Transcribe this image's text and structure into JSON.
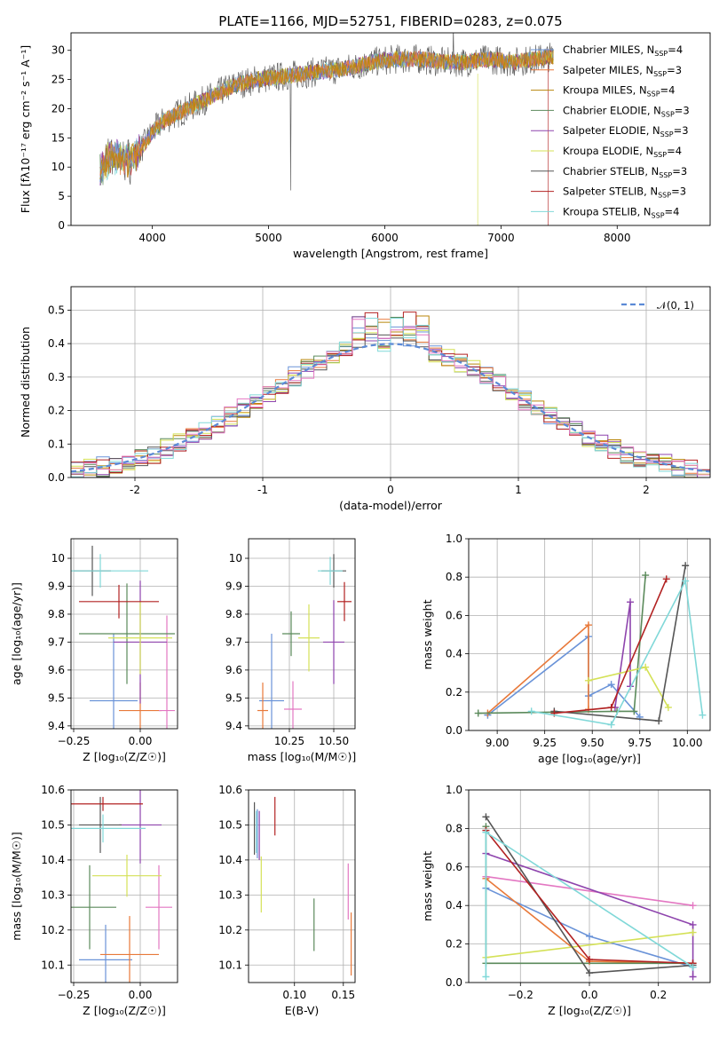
{
  "figure_title": "PLATE=1166, MJD=52751, FIBERID=0283, z=0.075",
  "legend": {
    "entries": [
      {
        "label": "Chabrier MILES, N",
        "sub": "SSP",
        "tail": "=4",
        "color": "#6a93d8"
      },
      {
        "label": "Salpeter MILES, N",
        "sub": "SSP",
        "tail": "=3",
        "color": "#e8793a"
      },
      {
        "label": "Kroupa MILES, N",
        "sub": "SSP",
        "tail": "=4",
        "color": "#b8860b"
      },
      {
        "label": "Chabrier ELODIE, N",
        "sub": "SSP",
        "tail": "=3",
        "color": "#5b8a5b"
      },
      {
        "label": "Salpeter ELODIE, N",
        "sub": "SSP",
        "tail": "=3",
        "color": "#8e44ad"
      },
      {
        "label": "Kroupa ELODIE, N",
        "sub": "SSP",
        "tail": "=4",
        "color": "#d4e157"
      },
      {
        "label": "Chabrier STELIB, N",
        "sub": "SSP",
        "tail": "=3",
        "color": "#555555"
      },
      {
        "label": "Salpeter STELIB, N",
        "sub": "SSP",
        "tail": "=3",
        "color": "#b22222"
      },
      {
        "label": "Kroupa STELIB, N",
        "sub": "SSP",
        "tail": "=4",
        "color": "#80d8d8"
      }
    ],
    "gauss_label": "𝒩(0, 1)"
  },
  "chart_data": [
    {
      "id": "spectrum",
      "type": "line",
      "xlabel": "wavelength [Angstrom, rest frame]",
      "ylabel": "Flux [fλ10⁻¹⁷ erg cm⁻² s⁻¹ A⁻¹]",
      "xlim": [
        3300,
        8800
      ],
      "ylim": [
        0,
        33
      ],
      "xticks": [
        4000,
        5000,
        6000,
        7000,
        8000
      ],
      "yticks": [
        0,
        5,
        10,
        15,
        20,
        25,
        30
      ],
      "legend_position": "upper right",
      "continuum": [
        [
          3550,
          9
        ],
        [
          3650,
          12
        ],
        [
          3800,
          11
        ],
        [
          3900,
          13
        ],
        [
          4000,
          16
        ],
        [
          4100,
          18
        ],
        [
          4300,
          20
        ],
        [
          4500,
          22
        ],
        [
          4700,
          24
        ],
        [
          4900,
          25
        ],
        [
          5100,
          25.5
        ],
        [
          5300,
          26
        ],
        [
          5500,
          26.5
        ],
        [
          5700,
          27
        ],
        [
          5900,
          28
        ],
        [
          6100,
          28.5
        ],
        [
          6300,
          28.5
        ],
        [
          6500,
          28
        ],
        [
          6700,
          28
        ],
        [
          6900,
          28.5
        ],
        [
          7100,
          28
        ],
        [
          7300,
          28.5
        ],
        [
          7450,
          29
        ]
      ]
    },
    {
      "id": "residuals",
      "type": "histogram",
      "xlabel": "(data-model)/error",
      "ylabel": "Normed distribution",
      "xlim": [
        -2.5,
        2.5
      ],
      "ylim": [
        0,
        0.57
      ],
      "xticks": [
        -2,
        -1,
        0,
        1,
        2
      ],
      "yticks": [
        0.0,
        0.1,
        0.2,
        0.3,
        0.4,
        0.5
      ],
      "grid": true,
      "legend_position": "upper right"
    },
    {
      "id": "age_vs_z",
      "type": "errorbar",
      "xlabel": "Z [log₁₀(Z/Z☉)]",
      "ylabel": "age  [log₁₀(age/yr)]",
      "xlim": [
        -0.26,
        0.14
      ],
      "ylim": [
        9.39,
        10.07
      ],
      "xticks": [
        -0.25,
        0.0
      ],
      "xticklabels": [
        "−0.25",
        "0.00"
      ],
      "yticks": [
        9.4,
        9.5,
        9.6,
        9.7,
        9.8,
        9.9,
        10.0
      ],
      "grid": true,
      "points": [
        {
          "x": -0.1,
          "y": 9.49,
          "xerr": 0.09,
          "yerr": 0.24,
          "c": 0
        },
        {
          "x": 0.0,
          "y": 9.455,
          "xerr": 0.08,
          "yerr": 0.1,
          "c": 1
        },
        {
          "x": 0.1,
          "y": 9.455,
          "xerr": 0.03,
          "yerr": 0.34,
          "c": 9
        },
        {
          "x": -0.05,
          "y": 9.73,
          "xerr": 0.18,
          "yerr": 0.18,
          "c": 3
        },
        {
          "x": 0.0,
          "y": 9.7,
          "xerr": 0.1,
          "yerr": 0.22,
          "c": 4
        },
        {
          "x": 0.0,
          "y": 9.715,
          "xerr": 0.12,
          "yerr": 0.13,
          "c": 5
        },
        {
          "x": -0.18,
          "y": 9.955,
          "xerr": 0.07,
          "yerr": 0.09,
          "c": 6
        },
        {
          "x": -0.08,
          "y": 9.845,
          "xerr": 0.15,
          "yerr": 0.06,
          "c": 7
        },
        {
          "x": -0.15,
          "y": 9.955,
          "xerr": 0.18,
          "yerr": 0.06,
          "c": 8
        }
      ]
    },
    {
      "id": "age_vs_mass",
      "type": "errorbar",
      "xlabel": "mass [log₁₀(M/M☉)]",
      "ylabel": "",
      "xlim": [
        10.02,
        10.62
      ],
      "ylim": [
        9.39,
        10.07
      ],
      "xticks": [
        10.25,
        10.5
      ],
      "xticklabels": [
        "10.25",
        "10.50"
      ],
      "yticks": [
        9.4,
        9.5,
        9.6,
        9.7,
        9.8,
        9.9,
        10.0
      ],
      "grid": true,
      "points": [
        {
          "x": 10.15,
          "y": 9.49,
          "xerr": 0.07,
          "yerr": 0.24,
          "c": 0
        },
        {
          "x": 10.1,
          "y": 9.455,
          "xerr": 0.03,
          "yerr": 0.1,
          "c": 1
        },
        {
          "x": 10.27,
          "y": 9.46,
          "xerr": 0.05,
          "yerr": 0.1,
          "c": 9
        },
        {
          "x": 10.26,
          "y": 9.73,
          "xerr": 0.05,
          "yerr": 0.08,
          "c": 3
        },
        {
          "x": 10.5,
          "y": 9.7,
          "xerr": 0.06,
          "yerr": 0.15,
          "c": 4
        },
        {
          "x": 10.36,
          "y": 9.715,
          "xerr": 0.06,
          "yerr": 0.12,
          "c": 5
        },
        {
          "x": 10.5,
          "y": 9.955,
          "xerr": 0.07,
          "yerr": 0.06,
          "c": 6
        },
        {
          "x": 10.56,
          "y": 9.845,
          "xerr": 0.04,
          "yerr": 0.07,
          "c": 7
        },
        {
          "x": 10.48,
          "y": 9.955,
          "xerr": 0.07,
          "yerr": 0.05,
          "c": 8
        }
      ]
    },
    {
      "id": "mass_weight_vs_age",
      "type": "line",
      "xlabel": "age  [log₁₀(age/yr)]",
      "ylabel": "mass weight",
      "xlim": [
        8.85,
        10.12
      ],
      "ylim": [
        0,
        1.0
      ],
      "xticks": [
        9.0,
        9.25,
        9.5,
        9.75,
        10.0
      ],
      "xticklabels": [
        "9.00",
        "9.25",
        "9.50",
        "9.75",
        "10.00"
      ],
      "yticks": [
        0.0,
        0.2,
        0.4,
        0.6,
        0.8,
        1.0
      ],
      "grid": true,
      "series": [
        {
          "c": 0,
          "x": [
            8.95,
            9.48,
            9.48,
            9.6,
            9.75
          ],
          "y": [
            0.08,
            0.49,
            0.18,
            0.24,
            0.07
          ]
        },
        {
          "c": 1,
          "x": [
            8.95,
            9.48,
            9.48
          ],
          "y": [
            0.09,
            0.55,
            0.11
          ]
        },
        {
          "c": 3,
          "x": [
            8.9,
            9.63,
            9.72,
            9.78
          ],
          "y": [
            0.09,
            0.1,
            0.1,
            0.81
          ]
        },
        {
          "c": 4,
          "x": [
            9.62,
            9.7,
            9.7
          ],
          "y": [
            0.12,
            0.67,
            0.23
          ]
        },
        {
          "c": 5,
          "x": [
            9.48,
            9.78,
            9.9
          ],
          "y": [
            0.26,
            0.33,
            0.12
          ]
        },
        {
          "c": 6,
          "x": [
            9.3,
            9.85,
            9.99
          ],
          "y": [
            0.1,
            0.05,
            0.86
          ]
        },
        {
          "c": 7,
          "x": [
            9.3,
            9.6,
            9.89
          ],
          "y": [
            0.09,
            0.12,
            0.79
          ]
        },
        {
          "c": 8,
          "x": [
            9.18,
            9.6,
            9.99,
            10.08
          ],
          "y": [
            0.1,
            0.03,
            0.78,
            0.08
          ]
        }
      ]
    },
    {
      "id": "mass_vs_z",
      "type": "errorbar",
      "xlabel": "Z [log₁₀(Z/Z☉)]",
      "ylabel": "mass [log₁₀(M/M☉)]",
      "xlim": [
        -0.26,
        0.14
      ],
      "ylim": [
        10.05,
        10.6
      ],
      "xticks": [
        -0.25,
        0.0
      ],
      "xticklabels": [
        "−0.25",
        "0.00"
      ],
      "yticks": [
        10.1,
        10.2,
        10.3,
        10.4,
        10.5,
        10.6
      ],
      "grid": true,
      "points": [
        {
          "x": -0.13,
          "y": 10.115,
          "xerr": 0.1,
          "yerr": 0.1,
          "c": 0
        },
        {
          "x": -0.04,
          "y": 10.13,
          "xerr": 0.11,
          "yerr": 0.11,
          "c": 1
        },
        {
          "x": 0.07,
          "y": 10.265,
          "xerr": 0.05,
          "yerr": 0.12,
          "c": 9
        },
        {
          "x": -0.19,
          "y": 10.265,
          "xerr": 0.1,
          "yerr": 0.12,
          "c": 3
        },
        {
          "x": 0.0,
          "y": 10.5,
          "xerr": 0.08,
          "yerr": 0.11,
          "c": 4
        },
        {
          "x": -0.05,
          "y": 10.355,
          "xerr": 0.13,
          "yerr": 0.06,
          "c": 5
        },
        {
          "x": -0.15,
          "y": 10.5,
          "xerr": 0.08,
          "yerr": 0.08,
          "c": 6
        },
        {
          "x": -0.14,
          "y": 10.56,
          "xerr": 0.15,
          "yerr": 0.02,
          "c": 7
        },
        {
          "x": -0.14,
          "y": 10.49,
          "xerr": 0.16,
          "yerr": 0.04,
          "c": 8
        }
      ]
    },
    {
      "id": "mass_vs_ebv",
      "type": "errorbar",
      "xlabel": "E(B-V)",
      "ylabel": "",
      "xlim": [
        0.053,
        0.162
      ],
      "ylim": [
        10.05,
        10.6
      ],
      "xticks": [
        0.1,
        0.15
      ],
      "xticklabels": [
        "0.10",
        "0.15"
      ],
      "yticks": [
        10.1,
        10.2,
        10.3,
        10.4,
        10.5,
        10.6
      ],
      "grid": true,
      "points": [
        {
          "x": 0.062,
          "y": 10.475,
          "xerr": 0,
          "yerr": 0.07,
          "c": 0
        },
        {
          "x": 0.158,
          "y": 10.16,
          "xerr": 0,
          "yerr": 0.09,
          "c": 1
        },
        {
          "x": 0.155,
          "y": 10.31,
          "xerr": 0,
          "yerr": 0.08,
          "c": 9
        },
        {
          "x": 0.12,
          "y": 10.215,
          "xerr": 0,
          "yerr": 0.075,
          "c": 3
        },
        {
          "x": 0.064,
          "y": 10.47,
          "xerr": 0,
          "yerr": 0.07,
          "c": 4
        },
        {
          "x": 0.066,
          "y": 10.33,
          "xerr": 0,
          "yerr": 0.08,
          "c": 5
        },
        {
          "x": 0.059,
          "y": 10.49,
          "xerr": 0,
          "yerr": 0.075,
          "c": 6
        },
        {
          "x": 0.08,
          "y": 10.525,
          "xerr": 0,
          "yerr": 0.055,
          "c": 7
        },
        {
          "x": 0.061,
          "y": 10.48,
          "xerr": 0,
          "yerr": 0.06,
          "c": 8
        }
      ]
    },
    {
      "id": "mass_weight_vs_z",
      "type": "line",
      "xlabel": "Z [log₁₀(Z/Z☉)]",
      "ylabel": "mass weight",
      "xlim": [
        -0.35,
        0.35
      ],
      "ylim": [
        0,
        1.0
      ],
      "xticks": [
        -0.2,
        0.0,
        0.2
      ],
      "xticklabels": [
        "−0.2",
        "0.0",
        "0.2"
      ],
      "yticks": [
        0.0,
        0.2,
        0.4,
        0.6,
        0.8,
        1.0
      ],
      "grid": true,
      "series": [
        {
          "c": 0,
          "x": [
            -0.3,
            0.0,
            0.3
          ],
          "y": [
            0.49,
            0.24,
            0.08
          ]
        },
        {
          "c": 1,
          "x": [
            -0.3,
            0.0,
            0.3
          ],
          "y": [
            0.54,
            0.11,
            0.1
          ]
        },
        {
          "c": 9,
          "x": [
            -0.3,
            0.3
          ],
          "y": [
            0.55,
            0.4
          ]
        },
        {
          "c": 3,
          "x": [
            -0.3,
            -0.3,
            0.3
          ],
          "y": [
            0.81,
            0.1,
            0.1
          ]
        },
        {
          "c": 4,
          "x": [
            -0.3,
            0.3,
            0.3
          ],
          "y": [
            0.67,
            0.3,
            0.03
          ]
        },
        {
          "c": 5,
          "x": [
            -0.3,
            0.3
          ],
          "y": [
            0.13,
            0.26
          ]
        },
        {
          "c": 6,
          "x": [
            -0.3,
            0.0,
            0.3
          ],
          "y": [
            0.86,
            0.05,
            0.09
          ]
        },
        {
          "c": 7,
          "x": [
            -0.3,
            0.0,
            0.3
          ],
          "y": [
            0.79,
            0.12,
            0.1
          ]
        },
        {
          "c": 8,
          "x": [
            -0.3,
            -0.3,
            0.3
          ],
          "y": [
            0.03,
            0.78,
            0.08
          ]
        }
      ]
    }
  ]
}
